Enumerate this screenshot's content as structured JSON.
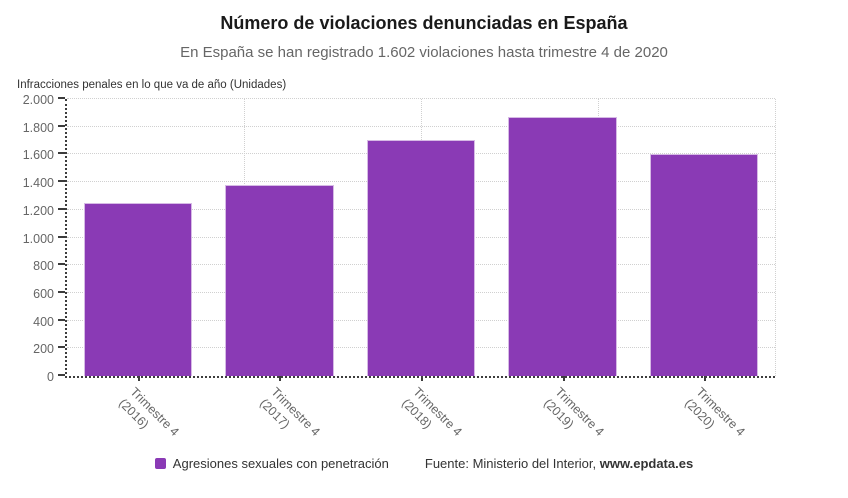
{
  "header": {
    "title": "Número de violaciones denunciadas en España",
    "subtitle": "En España se han registrado 1.602 violaciones hasta trimestre 4 de 2020"
  },
  "chart_data": {
    "type": "bar",
    "title": "Número de violaciones denunciadas en España",
    "subtitle": "En España se han registrado 1.602 violaciones hasta trimestre 4 de 2020",
    "ylabel": "Infracciones penales en lo que va de año (Unidades)",
    "xlabel": "",
    "categories": [
      "Trimestre 4 (2016)",
      "Trimestre 4 (2017)",
      "Trimestre 4 (2018)",
      "Trimestre 4 (2019)",
      "Trimestre 4 (2020)"
    ],
    "category_lines": [
      [
        "Trimestre 4",
        "(2016)"
      ],
      [
        "Trimestre 4",
        "(2017)"
      ],
      [
        "Trimestre 4",
        "(2018)"
      ],
      [
        "Trimestre 4",
        "(2019)"
      ],
      [
        "Trimestre 4",
        "(2020)"
      ]
    ],
    "series": [
      {
        "name": "Agresiones sexuales con penetración",
        "values": [
          1249,
          1382,
          1702,
          1873,
          1602
        ]
      }
    ],
    "ylim": [
      0,
      2000
    ],
    "ytick_step": 200,
    "ytick_labels": [
      "0",
      "200",
      "400",
      "600",
      "800",
      "1.000",
      "1.200",
      "1.400",
      "1.600",
      "1.800",
      "2.000"
    ],
    "grid": "dotted horizontal every 200 units, dotted vertical at quarter widths",
    "legend_position": "bottom",
    "bar_color": "#8a3ab5"
  },
  "legend": {
    "label": "Agresiones sexuales con penetración",
    "marker_color": "#8a3ab5"
  },
  "source": {
    "prefix": "Fuente: Ministerio del Interior, ",
    "link": "www.epdata.es"
  },
  "colors": {
    "bar": "#8a3ab5",
    "title": "#1a1a1a",
    "subtitle": "#666666",
    "tick_label": "#666666",
    "grid": "#d0d0d0",
    "axis": "#3c3c3c"
  }
}
